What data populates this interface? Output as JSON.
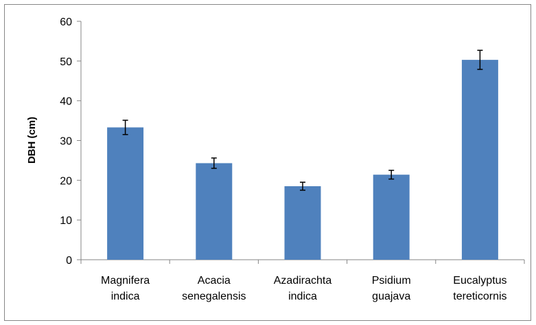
{
  "chart_data": {
    "type": "bar",
    "title": "",
    "xlabel": "",
    "ylabel": "DBH (cm)",
    "ylim": [
      0,
      60
    ],
    "yticks": [
      0,
      10,
      20,
      30,
      40,
      50,
      60
    ],
    "grid": false,
    "legend": "none",
    "bar_color": "#4f81bd",
    "categories": [
      [
        "Magnifera",
        "indica"
      ],
      [
        "Acacia",
        "senegalensis"
      ],
      [
        "Azadirachta",
        "indica"
      ],
      [
        "Psidium",
        "guajava"
      ],
      [
        "Eucalyptus",
        "tereticornis"
      ]
    ],
    "values": [
      33.3,
      24.3,
      18.5,
      21.4,
      50.3
    ],
    "error": [
      1.8,
      1.3,
      1.0,
      1.1,
      2.4
    ]
  }
}
